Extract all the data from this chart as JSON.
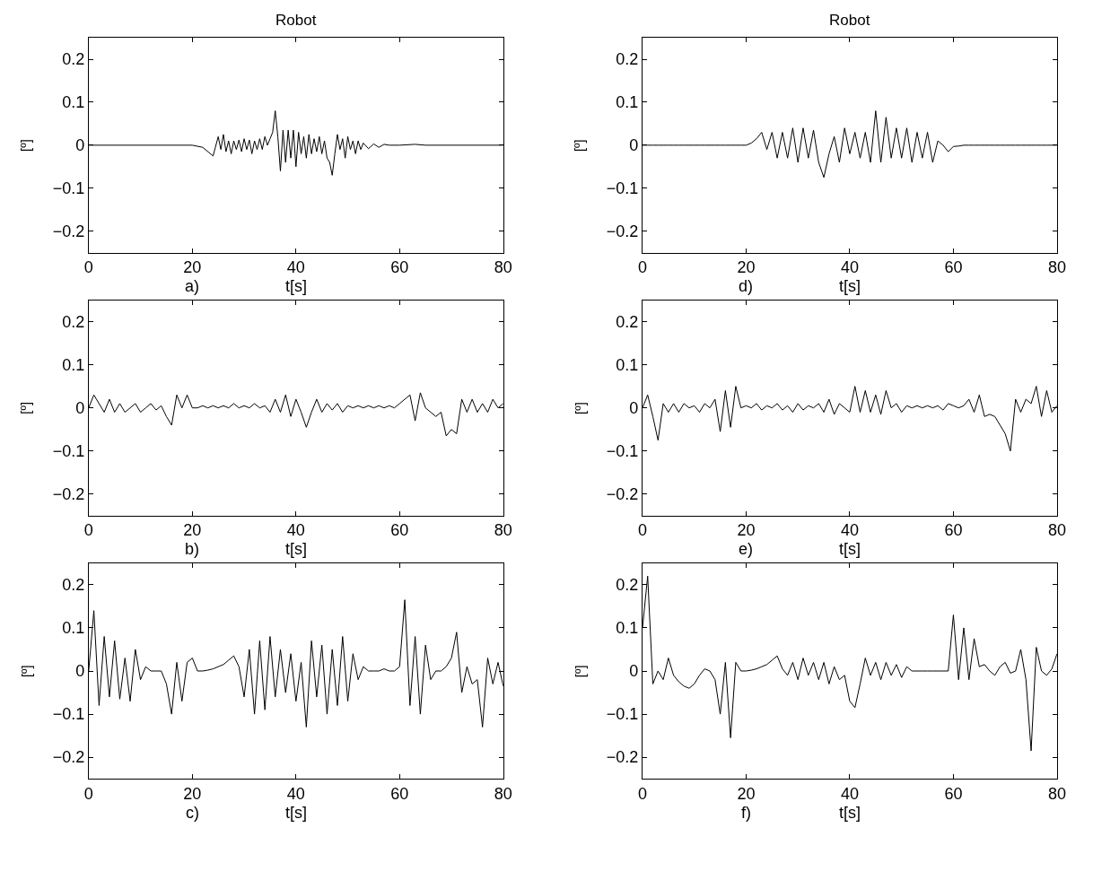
{
  "chart_data": [
    {
      "type": "line",
      "title": "Robot",
      "xlabel": "t[s]",
      "ylabel": "[º]",
      "annotations": [
        "a)"
      ],
      "xlim": [
        0,
        80
      ],
      "ylim": [
        -0.25,
        0.25
      ],
      "xticks": [
        0,
        20,
        40,
        60,
        80
      ],
      "yticks": [
        -0.2,
        -0.1,
        0,
        0.1,
        0.2
      ],
      "x": [
        0,
        20,
        22,
        24,
        25,
        25.5,
        26,
        26.5,
        27,
        27.5,
        28,
        28.5,
        29,
        29.5,
        30,
        30.5,
        31,
        31.5,
        32,
        32.5,
        33,
        33.5,
        34,
        34.5,
        35,
        35.5,
        36,
        36.5,
        37,
        37.5,
        38,
        38.5,
        39,
        39.5,
        40,
        40.5,
        41,
        41.5,
        42,
        42.5,
        43,
        43.5,
        44,
        44.5,
        45,
        45.5,
        46,
        46.5,
        47,
        47.5,
        48,
        48.5,
        49,
        49.5,
        50,
        50.5,
        51,
        51.5,
        52,
        52.5,
        53,
        54,
        55,
        56,
        57,
        58,
        60,
        63,
        65,
        80
      ],
      "series": [
        {
          "color": "#000000",
          "values": [
            0,
            0,
            -0.005,
            -0.025,
            0.02,
            -0.01,
            0.025,
            -0.015,
            0.01,
            -0.02,
            0.01,
            -0.01,
            0.012,
            -0.015,
            0.015,
            -0.01,
            0.012,
            -0.02,
            0.01,
            -0.01,
            0.015,
            -0.01,
            0.02,
            0,
            0.015,
            0.03,
            0.08,
            0.02,
            -0.06,
            0.035,
            -0.04,
            0.035,
            -0.03,
            0.035,
            -0.05,
            0.03,
            -0.02,
            0.02,
            -0.03,
            0.025,
            -0.02,
            0.015,
            -0.015,
            0.02,
            -0.02,
            0.01,
            -0.03,
            -0.04,
            -0.07,
            -0.02,
            0.025,
            -0.01,
            0.015,
            -0.03,
            0.02,
            -0.01,
            0.01,
            -0.02,
            0.01,
            -0.01,
            0.005,
            -0.008,
            0.003,
            -0.005,
            0.002,
            0,
            0,
            0.002,
            0,
            0
          ]
        }
      ]
    },
    {
      "type": "line",
      "title": "Robot",
      "xlabel": "t[s]",
      "ylabel": "[º]",
      "annotations": [
        "d)"
      ],
      "xlim": [
        0,
        80
      ],
      "ylim": [
        -0.25,
        0.25
      ],
      "xticks": [
        0,
        20,
        40,
        60,
        80
      ],
      "yticks": [
        -0.2,
        -0.1,
        0,
        0.1,
        0.2
      ],
      "x": [
        0,
        1,
        2,
        3,
        4,
        5,
        6,
        7,
        8,
        9,
        10,
        11,
        12,
        13,
        14,
        15,
        16,
        17,
        18,
        19,
        20,
        21,
        22,
        23,
        24,
        25,
        26,
        27,
        28,
        29,
        30,
        31,
        32,
        33,
        34,
        35,
        36,
        37,
        38,
        39,
        40,
        41,
        42,
        43,
        44,
        45,
        46,
        47,
        48,
        49,
        50,
        51,
        52,
        53,
        54,
        55,
        56,
        57,
        58,
        59,
        60,
        61,
        62,
        63,
        64,
        65,
        66,
        67,
        68,
        69,
        70,
        71,
        72,
        73,
        74,
        75,
        76,
        77,
        78,
        79,
        80
      ],
      "series": [
        {
          "color": "#000000",
          "values": [
            0,
            0,
            0,
            0,
            0,
            0,
            0,
            0,
            0,
            0,
            0,
            0,
            0,
            0,
            0,
            0,
            0,
            0,
            0,
            0,
            0,
            0.005,
            0.015,
            0.03,
            -0.01,
            0.03,
            -0.03,
            0.03,
            -0.03,
            0.04,
            -0.04,
            0.04,
            -0.03,
            0.035,
            -0.04,
            -0.075,
            -0.02,
            0.02,
            -0.04,
            0.04,
            -0.02,
            0.03,
            -0.03,
            0.03,
            -0.04,
            0.08,
            -0.04,
            0.065,
            -0.03,
            0.04,
            -0.03,
            0.04,
            -0.04,
            0.03,
            -0.03,
            0.03,
            -0.04,
            0.01,
            0,
            -0.015,
            -0.003,
            -0.002,
            0,
            0,
            0,
            0,
            0,
            0,
            0,
            0,
            0,
            0,
            0,
            0,
            0,
            0,
            0,
            0,
            0,
            0,
            0
          ]
        }
      ]
    },
    {
      "type": "line",
      "xlabel": "t[s]",
      "ylabel": "[º]",
      "annotations": [
        "b)"
      ],
      "xlim": [
        0,
        80
      ],
      "ylim": [
        -0.25,
        0.25
      ],
      "xticks": [
        0,
        20,
        40,
        60,
        80
      ],
      "yticks": [
        -0.2,
        -0.1,
        0,
        0.1,
        0.2
      ],
      "x": [
        0,
        1,
        2,
        3,
        4,
        5,
        6,
        7,
        8,
        9,
        10,
        11,
        12,
        13,
        14,
        15,
        16,
        17,
        18,
        19,
        20,
        21,
        22,
        23,
        24,
        25,
        26,
        27,
        28,
        29,
        30,
        31,
        32,
        33,
        34,
        35,
        36,
        37,
        38,
        39,
        40,
        41,
        42,
        43,
        44,
        45,
        46,
        47,
        48,
        49,
        50,
        51,
        52,
        53,
        54,
        55,
        56,
        57,
        58,
        59,
        60,
        61,
        62,
        63,
        64,
        65,
        66,
        67,
        68,
        69,
        70,
        71,
        72,
        73,
        74,
        75,
        76,
        77,
        78,
        79,
        80
      ],
      "series": [
        {
          "color": "#000000",
          "values": [
            0,
            0.03,
            0.01,
            -0.01,
            0.02,
            -0.01,
            0.01,
            -0.01,
            0,
            0.01,
            -0.01,
            0,
            0.01,
            -0.005,
            0.005,
            -0.02,
            -0.04,
            0.03,
            0,
            0.03,
            0,
            0,
            0.005,
            0,
            0.005,
            0,
            0.005,
            0,
            0.01,
            0,
            0.005,
            0,
            0.01,
            0,
            0.005,
            -0.01,
            0.02,
            -0.01,
            0.03,
            -0.02,
            0.02,
            -0.01,
            -0.045,
            -0.01,
            0.02,
            -0.01,
            0.01,
            -0.005,
            0.01,
            -0.01,
            0.005,
            0,
            0.005,
            0,
            0.005,
            0,
            0.005,
            0,
            0.005,
            0,
            0.01,
            0.02,
            0.03,
            -0.03,
            0.035,
            0,
            -0.01,
            -0.02,
            -0.01,
            -0.065,
            -0.05,
            -0.06,
            0.02,
            -0.01,
            0.02,
            -0.01,
            0.01,
            -0.01,
            0.02,
            0,
            0.01
          ]
        }
      ]
    },
    {
      "type": "line",
      "xlabel": "t[s]",
      "ylabel": "[º]",
      "annotations": [
        "e)"
      ],
      "xlim": [
        0,
        80
      ],
      "ylim": [
        -0.25,
        0.25
      ],
      "xticks": [
        0,
        20,
        40,
        60,
        80
      ],
      "yticks": [
        -0.2,
        -0.1,
        0,
        0.1,
        0.2
      ],
      "x": [
        0,
        1,
        2,
        3,
        4,
        5,
        6,
        7,
        8,
        9,
        10,
        11,
        12,
        13,
        14,
        15,
        16,
        17,
        18,
        19,
        20,
        21,
        22,
        23,
        24,
        25,
        26,
        27,
        28,
        29,
        30,
        31,
        32,
        33,
        34,
        35,
        36,
        37,
        38,
        39,
        40,
        41,
        42,
        43,
        44,
        45,
        46,
        47,
        48,
        49,
        50,
        51,
        52,
        53,
        54,
        55,
        56,
        57,
        58,
        59,
        60,
        61,
        62,
        63,
        64,
        65,
        66,
        67,
        68,
        69,
        70,
        71,
        72,
        73,
        74,
        75,
        76,
        77,
        78,
        79,
        80
      ],
      "series": [
        {
          "color": "#000000",
          "values": [
            0,
            0.03,
            -0.02,
            -0.075,
            0.01,
            -0.01,
            0.01,
            -0.01,
            0.01,
            0,
            0.005,
            -0.01,
            0.01,
            0,
            0.02,
            -0.055,
            0.04,
            -0.045,
            0.05,
            0,
            0.005,
            0,
            0.01,
            -0.005,
            0.005,
            0,
            0.01,
            -0.005,
            0.005,
            -0.01,
            0.01,
            -0.005,
            0.005,
            0,
            0.01,
            -0.01,
            0.02,
            -0.015,
            0.01,
            0,
            -0.01,
            0.05,
            -0.01,
            0.04,
            -0.01,
            0.03,
            -0.015,
            0.04,
            0,
            0.01,
            -0.01,
            0.005,
            0,
            0.005,
            0,
            0.005,
            0,
            0.005,
            -0.005,
            0.01,
            0.005,
            0,
            0.005,
            0.02,
            -0.01,
            0.03,
            -0.02,
            -0.015,
            -0.02,
            -0.04,
            -0.06,
            -0.1,
            0.02,
            -0.01,
            0.02,
            0.01,
            0.05,
            -0.02,
            0.04,
            -0.01,
            0.005
          ]
        }
      ]
    },
    {
      "type": "line",
      "xlabel": "t[s]",
      "ylabel": "[º]",
      "annotations": [
        "c)"
      ],
      "xlim": [
        0,
        80
      ],
      "ylim": [
        -0.25,
        0.25
      ],
      "xticks": [
        0,
        20,
        40,
        60,
        80
      ],
      "yticks": [
        -0.2,
        -0.1,
        0,
        0.1,
        0.2
      ],
      "x": [
        0,
        1,
        2,
        3,
        4,
        5,
        6,
        7,
        8,
        9,
        10,
        11,
        12,
        13,
        14,
        15,
        16,
        17,
        18,
        19,
        20,
        21,
        22,
        23,
        24,
        25,
        26,
        27,
        28,
        29,
        30,
        31,
        32,
        33,
        34,
        35,
        36,
        37,
        38,
        39,
        40,
        41,
        42,
        43,
        44,
        45,
        46,
        47,
        48,
        49,
        50,
        51,
        52,
        53,
        54,
        55,
        56,
        57,
        58,
        59,
        60,
        61,
        62,
        63,
        64,
        65,
        66,
        67,
        68,
        69,
        70,
        71,
        72,
        73,
        74,
        75,
        76,
        77,
        78,
        79,
        80
      ],
      "series": [
        {
          "color": "#000000",
          "values": [
            0,
            0.14,
            -0.08,
            0.08,
            -0.06,
            0.07,
            -0.065,
            0.03,
            -0.07,
            0.05,
            -0.02,
            0.01,
            0,
            0,
            0,
            -0.03,
            -0.1,
            0.02,
            -0.07,
            0.02,
            0.03,
            0,
            0,
            0.002,
            0.005,
            0.01,
            0.015,
            0.025,
            0.035,
            0.01,
            -0.06,
            0.05,
            -0.1,
            0.07,
            -0.09,
            0.08,
            -0.06,
            0.05,
            -0.05,
            0.04,
            -0.07,
            0.02,
            -0.13,
            0.07,
            -0.06,
            0.06,
            -0.1,
            0.05,
            -0.08,
            0.08,
            -0.07,
            0.04,
            -0.02,
            0.01,
            0,
            0,
            0,
            0.005,
            0,
            0,
            0.01,
            0.165,
            -0.08,
            0.08,
            -0.1,
            0.06,
            -0.02,
            0,
            0,
            0.01,
            0.03,
            0.09,
            -0.05,
            0.01,
            -0.03,
            -0.02,
            -0.13,
            0.03,
            -0.03,
            0.02,
            -0.035
          ]
        }
      ]
    },
    {
      "type": "line",
      "xlabel": "t[s]",
      "ylabel": "[º]",
      "annotations": [
        "f)"
      ],
      "xlim": [
        0,
        80
      ],
      "ylim": [
        -0.25,
        0.25
      ],
      "xticks": [
        0,
        20,
        40,
        60,
        80
      ],
      "yticks": [
        -0.2,
        -0.1,
        0,
        0.1,
        0.2
      ],
      "x": [
        0,
        1,
        2,
        3,
        4,
        5,
        6,
        7,
        8,
        9,
        10,
        11,
        12,
        13,
        14,
        15,
        16,
        17,
        18,
        19,
        20,
        21,
        22,
        23,
        24,
        25,
        26,
        27,
        28,
        29,
        30,
        31,
        32,
        33,
        34,
        35,
        36,
        37,
        38,
        39,
        40,
        41,
        42,
        43,
        44,
        45,
        46,
        47,
        48,
        49,
        50,
        51,
        52,
        53,
        54,
        55,
        56,
        57,
        58,
        59,
        60,
        61,
        62,
        63,
        64,
        65,
        66,
        67,
        68,
        69,
        70,
        71,
        72,
        73,
        74,
        75,
        76,
        77,
        78,
        79,
        80
      ],
      "series": [
        {
          "color": "#000000",
          "values": [
            0.1,
            0.22,
            -0.03,
            0,
            -0.02,
            0.03,
            -0.01,
            -0.025,
            -0.035,
            -0.04,
            -0.03,
            -0.01,
            0.005,
            0,
            -0.02,
            -0.1,
            0.02,
            -0.155,
            0.02,
            0,
            0,
            0.002,
            0.005,
            0.01,
            0.015,
            0.025,
            0.035,
            0.005,
            -0.01,
            0.02,
            -0.02,
            0.03,
            -0.01,
            0.02,
            -0.02,
            0.02,
            -0.03,
            0.01,
            -0.02,
            -0.01,
            -0.07,
            -0.085,
            -0.03,
            0.03,
            -0.01,
            0.02,
            -0.02,
            0.02,
            -0.01,
            0.015,
            -0.015,
            0.01,
            0,
            0,
            0,
            0,
            0,
            0,
            0,
            0,
            0.13,
            -0.02,
            0.1,
            -0.02,
            0.075,
            0.01,
            0.015,
            0,
            -0.01,
            0.01,
            0.02,
            -0.005,
            0,
            0.05,
            -0.02,
            -0.185,
            0.055,
            0,
            -0.01,
            0.005,
            0.04
          ]
        }
      ]
    }
  ]
}
